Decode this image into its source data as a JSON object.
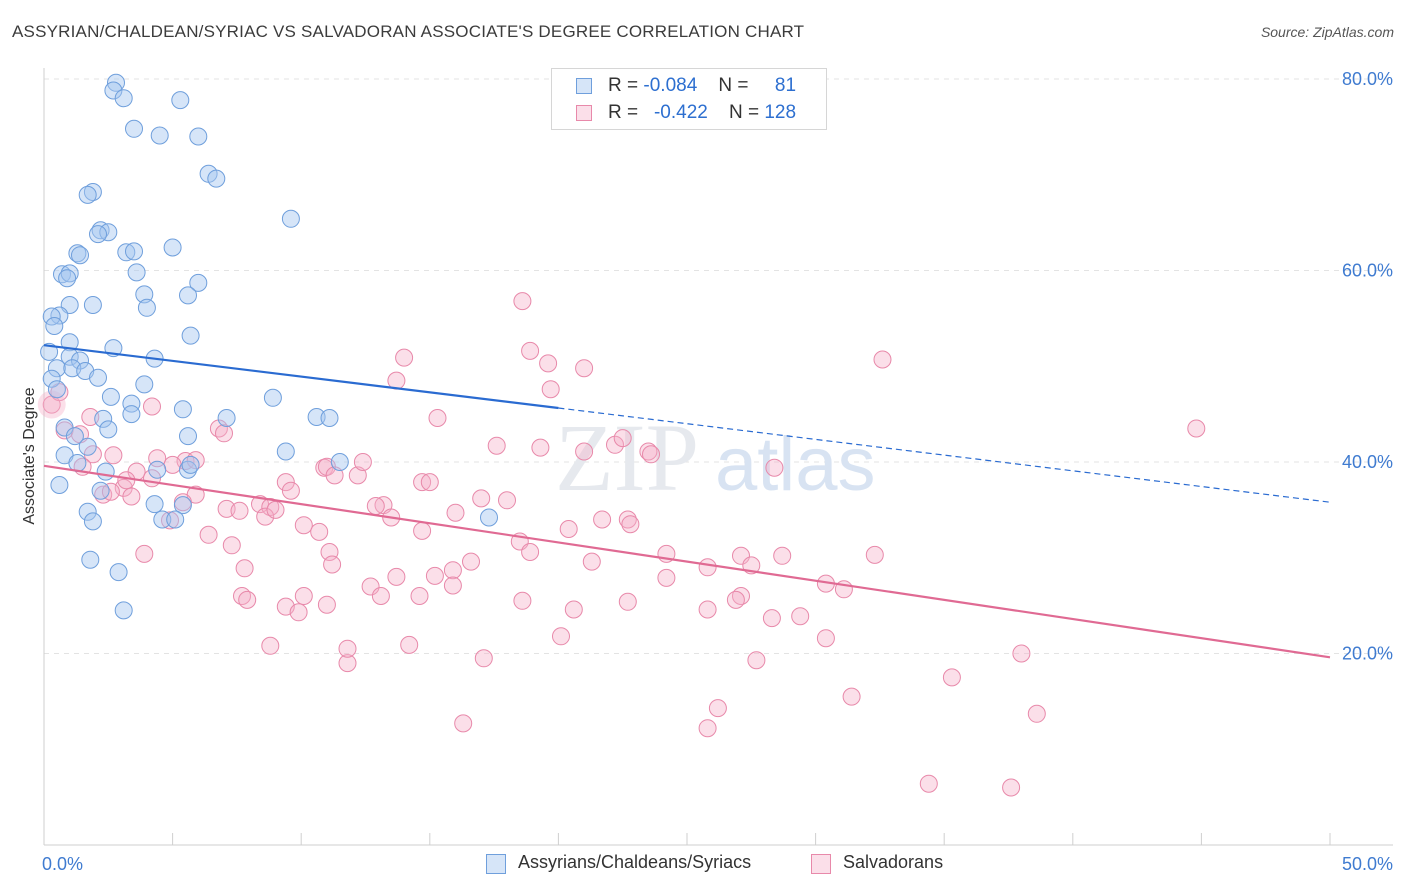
{
  "title": "ASSYRIAN/CHALDEAN/SYRIAC VS SALVADORAN ASSOCIATE'S DEGREE CORRELATION CHART",
  "source": "Source: ZipAtlas.com",
  "watermark": {
    "zip": "ZIP",
    "atlas": "atlas"
  },
  "legend_top": {
    "rows": [
      {
        "r_label": "R =",
        "r_value": "-0.084",
        "n_label": "N =",
        "n_value": "81"
      },
      {
        "r_label": "R =",
        "r_value": "-0.422",
        "n_label": "N =",
        "n_value": "128"
      }
    ]
  },
  "legend_bottom": {
    "series1": "Assyrians/Chaldeans/Syriacs",
    "series2": "Salvadorans"
  },
  "colors": {
    "blue_fill": "rgba(164,198,240,0.45)",
    "blue_stroke": "#6f9fdc",
    "blue_line": "#2a6bd1",
    "pink_fill": "rgba(246,176,200,0.40)",
    "pink_stroke": "#e889aa",
    "pink_line": "#e06a93",
    "axis_text": "#3f7bd0",
    "grid": "#e3e3e3"
  },
  "chart_data": {
    "type": "scatter",
    "title": "ASSYRIAN/CHALDEAN/SYRIAC VS SALVADORAN ASSOCIATE'S DEGREE CORRELATION CHART",
    "xlabel": "",
    "ylabel": "Associate's Degree",
    "xlim": [
      0,
      50
    ],
    "ylim": [
      0,
      80
    ],
    "x_tick_labels": [
      "0.0%",
      "50.0%"
    ],
    "y_ticks": [
      20,
      40,
      60,
      80
    ],
    "y_tick_labels": [
      "20.0%",
      "40.0%",
      "60.0%",
      "80.0%"
    ],
    "grid": true,
    "legend_position": "bottom",
    "series": [
      {
        "name": "Assyrians/Chaldeans/Syriacs",
        "r": -0.084,
        "n": 81,
        "trend": {
          "x0": 0,
          "y0": 52.2,
          "x_solid_end": 20,
          "x1": 50,
          "y1": 35.8
        },
        "points": [
          [
            2.8,
            79.6
          ],
          [
            2.7,
            78.8
          ],
          [
            3.1,
            78.0
          ],
          [
            5.3,
            77.8
          ],
          [
            3.5,
            74.8
          ],
          [
            4.5,
            74.1
          ],
          [
            6.0,
            74.0
          ],
          [
            6.4,
            70.1
          ],
          [
            6.7,
            69.6
          ],
          [
            1.9,
            68.2
          ],
          [
            1.7,
            67.9
          ],
          [
            9.6,
            65.4
          ],
          [
            2.2,
            64.2
          ],
          [
            2.5,
            64.0
          ],
          [
            2.1,
            63.8
          ],
          [
            5.0,
            62.4
          ],
          [
            1.3,
            61.8
          ],
          [
            1.4,
            61.6
          ],
          [
            3.2,
            61.9
          ],
          [
            3.6,
            59.8
          ],
          [
            0.7,
            59.6
          ],
          [
            1.0,
            59.7
          ],
          [
            0.9,
            59.2
          ],
          [
            6.0,
            58.7
          ],
          [
            3.9,
            57.5
          ],
          [
            5.6,
            57.4
          ],
          [
            1.0,
            56.4
          ],
          [
            1.9,
            56.4
          ],
          [
            4.0,
            56.1
          ],
          [
            0.6,
            55.3
          ],
          [
            0.3,
            55.2
          ],
          [
            0.4,
            54.2
          ],
          [
            5.7,
            53.2
          ],
          [
            1.0,
            52.5
          ],
          [
            2.7,
            51.9
          ],
          [
            0.2,
            51.5
          ],
          [
            1.0,
            51.0
          ],
          [
            1.4,
            50.6
          ],
          [
            4.3,
            50.8
          ],
          [
            0.5,
            49.8
          ],
          [
            1.1,
            49.8
          ],
          [
            1.6,
            49.5
          ],
          [
            2.1,
            48.8
          ],
          [
            0.3,
            48.7
          ],
          [
            0.5,
            47.6
          ],
          [
            3.9,
            48.1
          ],
          [
            2.6,
            46.8
          ],
          [
            8.9,
            46.7
          ],
          [
            3.4,
            46.1
          ],
          [
            5.4,
            45.5
          ],
          [
            3.4,
            45.0
          ],
          [
            10.6,
            44.7
          ],
          [
            11.1,
            44.6
          ],
          [
            7.1,
            44.6
          ],
          [
            2.3,
            44.5
          ],
          [
            0.8,
            43.6
          ],
          [
            2.5,
            43.4
          ],
          [
            1.2,
            42.7
          ],
          [
            5.6,
            42.7
          ],
          [
            1.7,
            41.6
          ],
          [
            0.8,
            40.7
          ],
          [
            9.4,
            41.1
          ],
          [
            1.3,
            39.9
          ],
          [
            11.5,
            40.0
          ],
          [
            5.6,
            39.2
          ],
          [
            4.4,
            39.2
          ],
          [
            2.4,
            39.0
          ],
          [
            0.6,
            37.6
          ],
          [
            5.7,
            39.7
          ],
          [
            2.2,
            37.0
          ],
          [
            4.3,
            35.6
          ],
          [
            5.4,
            35.5
          ],
          [
            1.7,
            34.8
          ],
          [
            17.3,
            34.2
          ],
          [
            1.9,
            33.8
          ],
          [
            4.6,
            34.0
          ],
          [
            5.1,
            34.0
          ],
          [
            1.8,
            29.8
          ],
          [
            2.9,
            28.5
          ],
          [
            3.1,
            24.5
          ],
          [
            3.5,
            62.0
          ]
        ]
      },
      {
        "name": "Salvadorans",
        "r": -0.422,
        "n": 128,
        "trend": {
          "x0": 0,
          "y0": 39.6,
          "x1": 50,
          "y1": 19.6
        },
        "points": [
          [
            0.3,
            46.0
          ],
          [
            0.6,
            47.3
          ],
          [
            1.8,
            44.7
          ],
          [
            4.2,
            45.8
          ],
          [
            0.8,
            43.3
          ],
          [
            1.4,
            42.9
          ],
          [
            1.9,
            40.8
          ],
          [
            2.7,
            40.7
          ],
          [
            1.5,
            39.5
          ],
          [
            4.4,
            40.4
          ],
          [
            5.5,
            40.1
          ],
          [
            5.9,
            40.2
          ],
          [
            6.8,
            43.5
          ],
          [
            7.0,
            43.0
          ],
          [
            5.0,
            39.7
          ],
          [
            3.6,
            39.0
          ],
          [
            4.2,
            38.3
          ],
          [
            3.1,
            37.3
          ],
          [
            2.3,
            36.6
          ],
          [
            2.6,
            36.9
          ],
          [
            3.4,
            36.4
          ],
          [
            5.9,
            36.6
          ],
          [
            5.4,
            35.8
          ],
          [
            7.1,
            35.1
          ],
          [
            7.6,
            34.9
          ],
          [
            8.4,
            35.6
          ],
          [
            8.8,
            35.3
          ],
          [
            9.4,
            37.9
          ],
          [
            9.6,
            37.0
          ],
          [
            10.9,
            39.4
          ],
          [
            12.2,
            38.6
          ],
          [
            12.4,
            40.0
          ],
          [
            11.0,
            39.5
          ],
          [
            11.3,
            38.6
          ],
          [
            8.6,
            34.3
          ],
          [
            4.9,
            33.9
          ],
          [
            6.4,
            32.4
          ],
          [
            7.3,
            31.3
          ],
          [
            10.1,
            33.4
          ],
          [
            10.7,
            32.7
          ],
          [
            13.2,
            35.5
          ],
          [
            12.9,
            35.4
          ],
          [
            14.7,
            37.9
          ],
          [
            15.0,
            37.9
          ],
          [
            14.7,
            32.8
          ],
          [
            16.0,
            34.7
          ],
          [
            17.0,
            36.2
          ],
          [
            18.0,
            36.0
          ],
          [
            18.5,
            31.7
          ],
          [
            18.9,
            30.6
          ],
          [
            20.4,
            33.0
          ],
          [
            21.7,
            34.0
          ],
          [
            22.7,
            34.0
          ],
          [
            22.8,
            33.5
          ],
          [
            24.2,
            30.4
          ],
          [
            25.8,
            29.0
          ],
          [
            27.1,
            30.2
          ],
          [
            27.5,
            29.2
          ],
          [
            28.7,
            30.2
          ],
          [
            32.3,
            30.3
          ],
          [
            30.4,
            27.3
          ],
          [
            31.1,
            26.7
          ],
          [
            24.2,
            27.9
          ],
          [
            21.3,
            29.6
          ],
          [
            16.6,
            29.6
          ],
          [
            15.9,
            28.7
          ],
          [
            15.2,
            28.1
          ],
          [
            13.7,
            28.0
          ],
          [
            12.7,
            27.0
          ],
          [
            11.1,
            30.6
          ],
          [
            11.2,
            29.3
          ],
          [
            7.8,
            28.9
          ],
          [
            7.7,
            26.0
          ],
          [
            10.1,
            26.0
          ],
          [
            11.0,
            25.1
          ],
          [
            13.1,
            26.0
          ],
          [
            14.6,
            26.0
          ],
          [
            15.9,
            27.1
          ],
          [
            18.6,
            25.5
          ],
          [
            20.6,
            24.6
          ],
          [
            22.7,
            25.4
          ],
          [
            25.8,
            24.6
          ],
          [
            27.1,
            26.0
          ],
          [
            26.9,
            25.6
          ],
          [
            29.4,
            23.9
          ],
          [
            28.3,
            23.7
          ],
          [
            9.4,
            24.9
          ],
          [
            9.9,
            24.3
          ],
          [
            11.8,
            19.0
          ],
          [
            14.2,
            20.9
          ],
          [
            17.1,
            19.5
          ],
          [
            20.1,
            21.8
          ],
          [
            27.7,
            19.3
          ],
          [
            30.4,
            21.6
          ],
          [
            35.3,
            17.5
          ],
          [
            38.0,
            20.0
          ],
          [
            31.4,
            15.5
          ],
          [
            26.2,
            14.3
          ],
          [
            25.8,
            12.2
          ],
          [
            16.3,
            12.7
          ],
          [
            38.6,
            13.7
          ],
          [
            34.4,
            6.4
          ],
          [
            37.6,
            6.0
          ],
          [
            44.8,
            43.5
          ],
          [
            32.6,
            50.7
          ],
          [
            18.6,
            56.8
          ],
          [
            18.9,
            51.6
          ],
          [
            19.6,
            50.3
          ],
          [
            21.0,
            49.8
          ],
          [
            19.7,
            47.6
          ],
          [
            14.0,
            50.9
          ],
          [
            13.7,
            48.5
          ],
          [
            15.3,
            44.6
          ],
          [
            17.6,
            41.7
          ],
          [
            19.3,
            41.5
          ],
          [
            21.0,
            41.1
          ],
          [
            22.2,
            41.8
          ],
          [
            22.5,
            42.5
          ],
          [
            23.5,
            41.1
          ],
          [
            23.6,
            40.8
          ],
          [
            28.4,
            39.4
          ],
          [
            3.9,
            30.4
          ],
          [
            7.9,
            25.6
          ],
          [
            8.8,
            20.8
          ],
          [
            11.8,
            20.5
          ],
          [
            9.0,
            35.0
          ],
          [
            13.5,
            34.2
          ],
          [
            3.2,
            38.1
          ]
        ]
      }
    ]
  }
}
